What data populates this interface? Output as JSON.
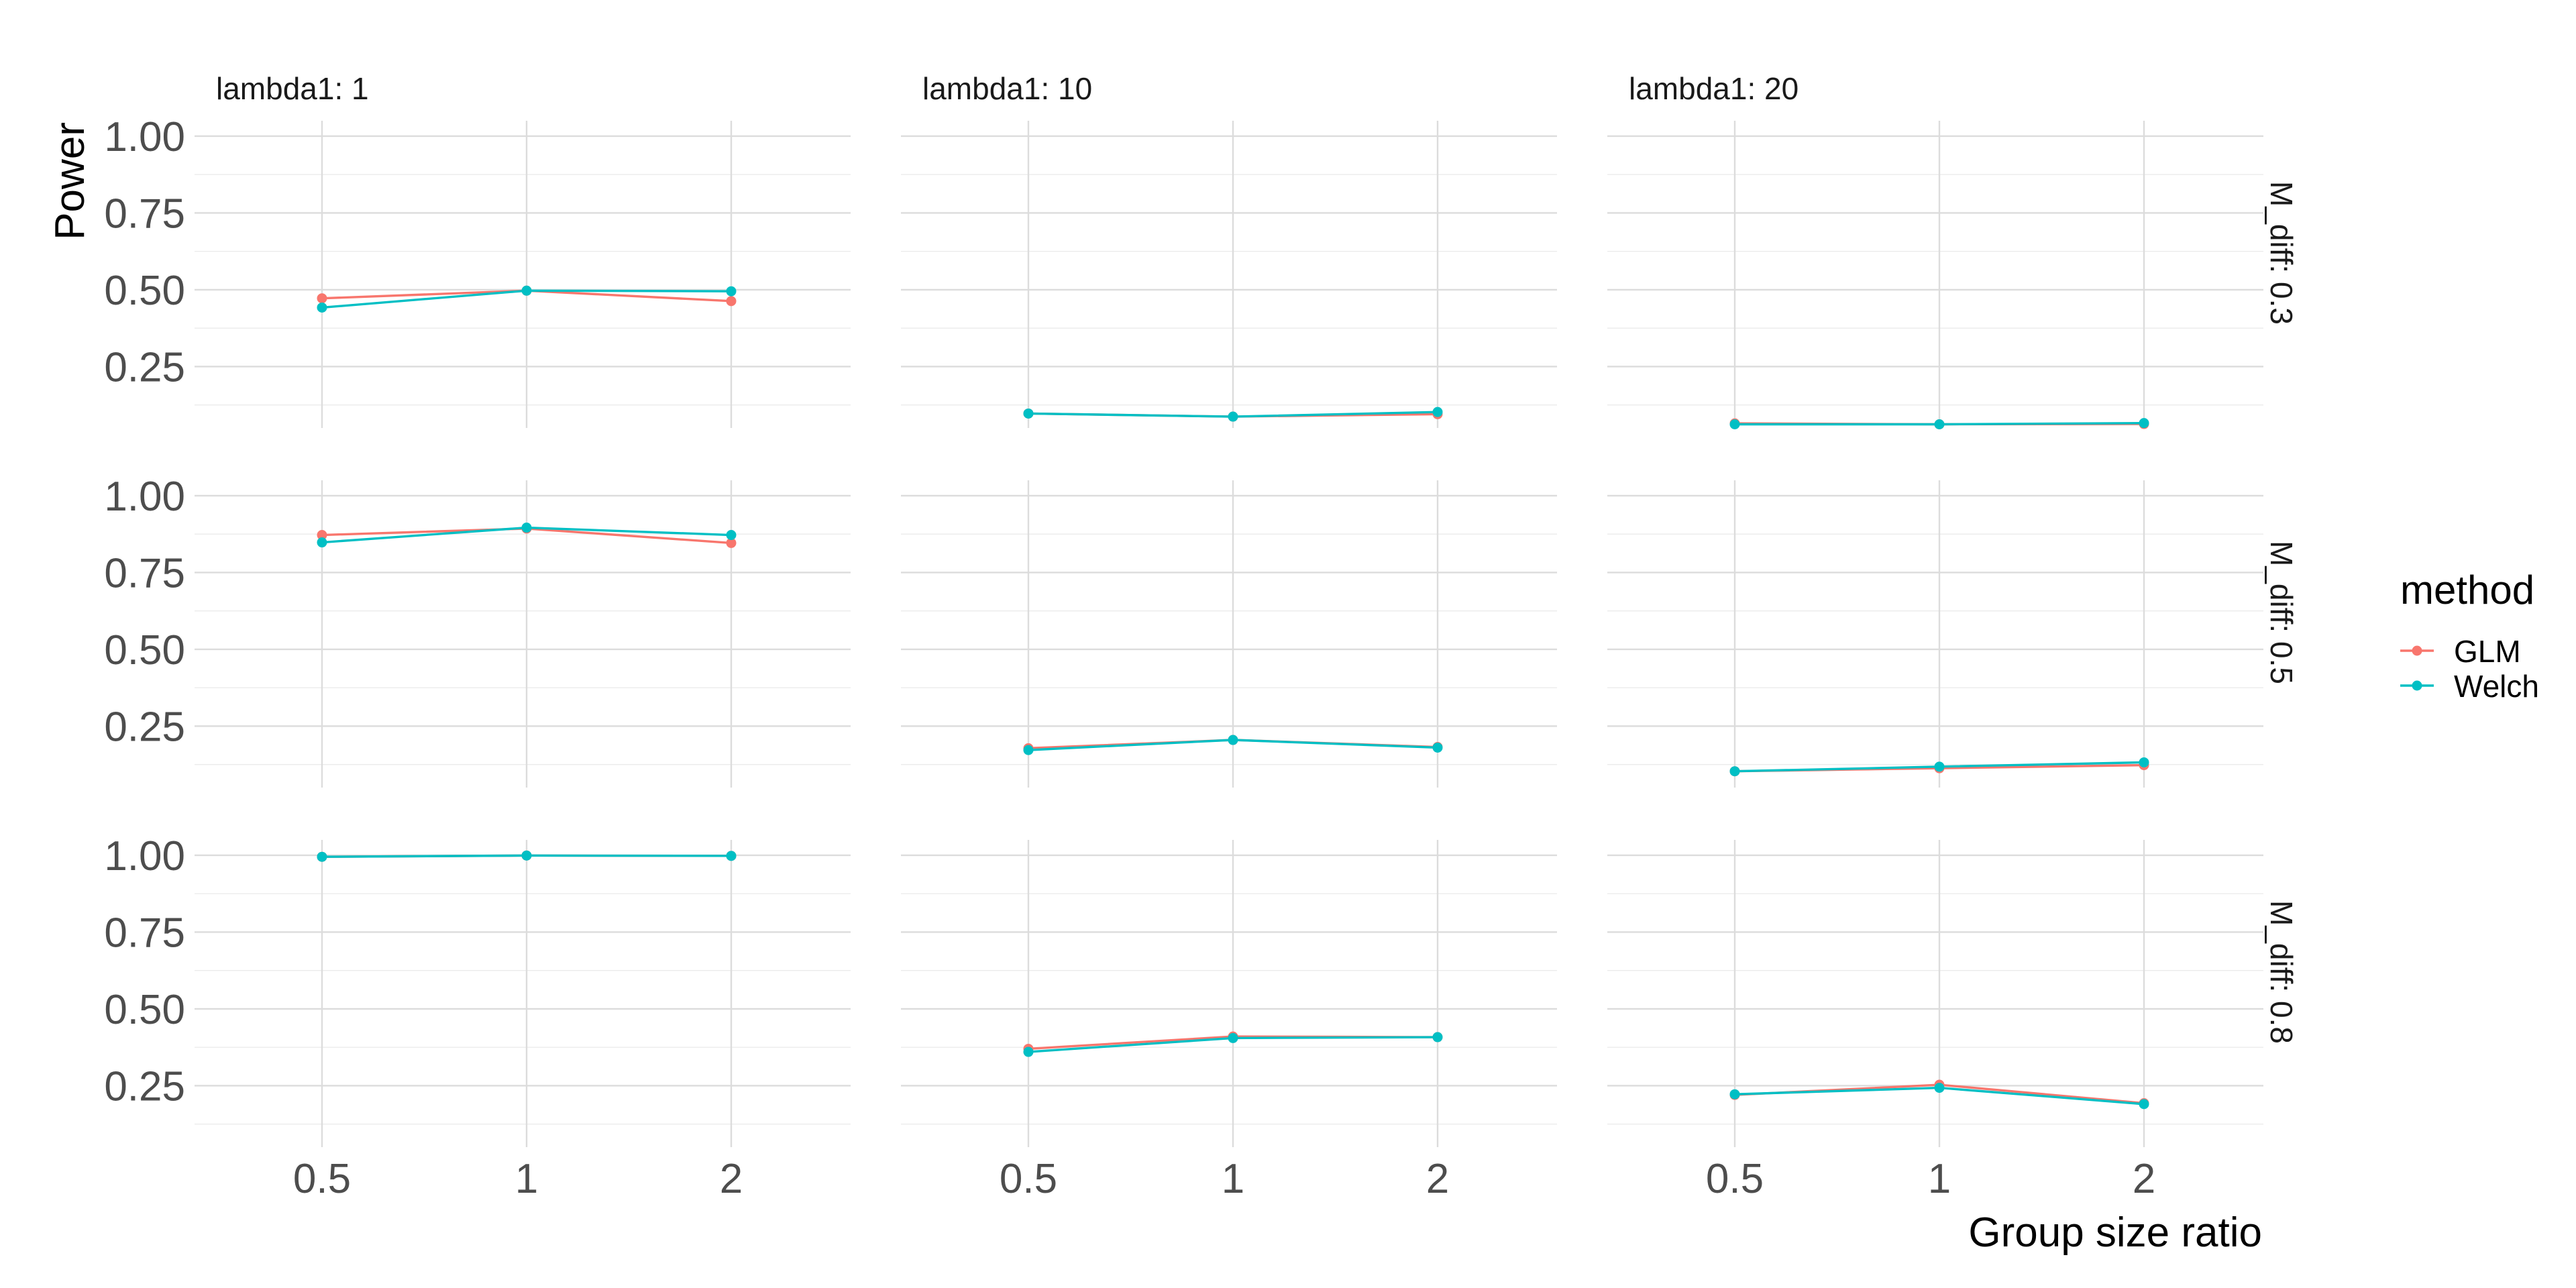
{
  "chart_data": {
    "type": "line",
    "facet_layout": "grid",
    "x_categories": [
      "0.5",
      "1",
      "2"
    ],
    "xlabel": "Group size ratio",
    "ylabel": "Power",
    "yticks": [
      "0.25",
      "0.50",
      "0.75",
      "1.00"
    ],
    "ylim": [
      0.05,
      1.05
    ],
    "grid": true,
    "legend": {
      "title": "method",
      "position": "right",
      "entries": [
        {
          "name": "GLM",
          "color": "#F8766D"
        },
        {
          "name": "Welch",
          "color": "#00BFC4"
        }
      ]
    },
    "column_labels": [
      "lambda1: 1",
      "lambda1: 10",
      "lambda1: 20"
    ],
    "row_labels": [
      "M_diff: 0.3",
      "M_diff: 0.5",
      "M_diff: 0.8"
    ],
    "panels": [
      {
        "row": 0,
        "col": 0,
        "series": [
          {
            "name": "GLM",
            "values": [
              0.472,
              0.497,
              0.463
            ]
          },
          {
            "name": "Welch",
            "values": [
              0.442,
              0.497,
              0.495
            ]
          }
        ]
      },
      {
        "row": 0,
        "col": 1,
        "series": [
          {
            "name": "GLM",
            "values": [
              0.097,
              0.087,
              0.095
            ]
          },
          {
            "name": "Welch",
            "values": [
              0.097,
              0.087,
              0.102
            ]
          }
        ]
      },
      {
        "row": 0,
        "col": 2,
        "series": [
          {
            "name": "GLM",
            "values": [
              0.065,
              0.062,
              0.063
            ]
          },
          {
            "name": "Welch",
            "values": [
              0.062,
              0.062,
              0.066
            ]
          }
        ]
      },
      {
        "row": 1,
        "col": 0,
        "series": [
          {
            "name": "GLM",
            "values": [
              0.872,
              0.893,
              0.846
            ]
          },
          {
            "name": "Welch",
            "values": [
              0.848,
              0.896,
              0.872
            ]
          }
        ]
      },
      {
        "row": 1,
        "col": 1,
        "series": [
          {
            "name": "GLM",
            "values": [
              0.178,
              0.205,
              0.182
            ]
          },
          {
            "name": "Welch",
            "values": [
              0.172,
              0.205,
              0.18
            ]
          }
        ]
      },
      {
        "row": 1,
        "col": 2,
        "series": [
          {
            "name": "GLM",
            "values": [
              0.103,
              0.113,
              0.123
            ]
          },
          {
            "name": "Welch",
            "values": [
              0.103,
              0.118,
              0.132
            ]
          }
        ]
      },
      {
        "row": 2,
        "col": 0,
        "series": [
          {
            "name": "GLM",
            "values": [
              0.995,
              0.999,
              0.998
            ]
          },
          {
            "name": "Welch",
            "values": [
              0.995,
              0.999,
              0.998
            ]
          }
        ]
      },
      {
        "row": 2,
        "col": 1,
        "series": [
          {
            "name": "GLM",
            "values": [
              0.37,
              0.41,
              0.408
            ]
          },
          {
            "name": "Welch",
            "values": [
              0.36,
              0.405,
              0.408
            ]
          }
        ]
      },
      {
        "row": 2,
        "col": 2,
        "series": [
          {
            "name": "GLM",
            "values": [
              0.22,
              0.253,
              0.193
            ]
          },
          {
            "name": "Welch",
            "values": [
              0.222,
              0.243,
              0.19
            ]
          }
        ]
      }
    ]
  }
}
